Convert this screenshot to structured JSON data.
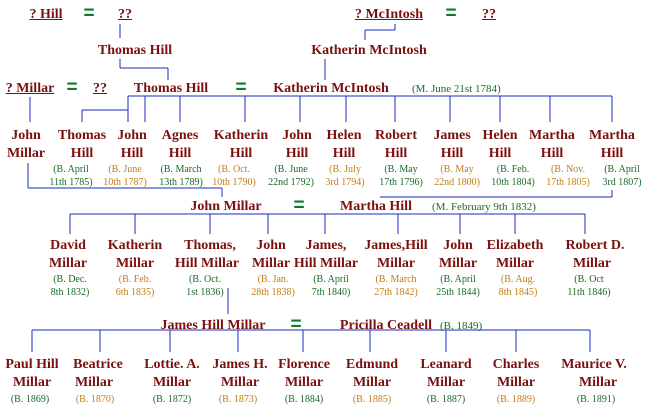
{
  "gen1": {
    "left_name": "? Hill",
    "left_spouse": "??",
    "right_name": "? McIntosh",
    "right_spouse": "??",
    "equals": "="
  },
  "gen2": {
    "thomas_hill": "Thomas Hill",
    "katherin_mcintosh": "Katherin McIntosh",
    "millar_name": "? Millar",
    "millar_spouse": "??",
    "couple_left": "Thomas Hill",
    "couple_right": "Katherin McIntosh",
    "marriage": "(M. June 21st 1784)",
    "equals": "="
  },
  "gen3": {
    "john_millar_line1": "John",
    "john_millar_line2": "Millar",
    "children": [
      {
        "line1": "Thomas",
        "line2": "Hill",
        "date1": "(B. April",
        "date2": "11th 1785)",
        "color": "#186b25"
      },
      {
        "line1": "John",
        "line2": "Hill",
        "date1": "(B. June",
        "date2": "10th 1787)",
        "color": "#c47c12"
      },
      {
        "line1": "Agnes",
        "line2": "Hill",
        "date1": "(B. March",
        "date2": "13th 1789)",
        "color": "#186b25"
      },
      {
        "line1": "Katherin",
        "line2": "Hill",
        "date1": "(B. Oct.",
        "date2": "10th 1790)",
        "color": "#c47c12"
      },
      {
        "line1": "John",
        "line2": "Hill",
        "date1": "(B. June",
        "date2": "22nd 1792)",
        "color": "#186b25"
      },
      {
        "line1": "Helen",
        "line2": "Hill",
        "date1": "(B. July",
        "date2": "3rd 1794)",
        "color": "#c47c12"
      },
      {
        "line1": "Robert",
        "line2": "Hill",
        "date1": "(B. May",
        "date2": "17th 1796)",
        "color": "#186b25"
      },
      {
        "line1": "James",
        "line2": "Hill",
        "date1": "(B. May",
        "date2": "22nd 1800)",
        "color": "#c47c12"
      },
      {
        "line1": "Helen",
        "line2": "Hill",
        "date1": "(B. Feb.",
        "date2": "10th 1804)",
        "color": "#186b25"
      },
      {
        "line1": "Martha",
        "line2": "Hill",
        "date1": "(B. Nov.",
        "date2": "17th 1805)",
        "color": "#c47c12"
      },
      {
        "line1": "Martha",
        "line2": "Hill",
        "date1": "(B. April",
        "date2": "3rd 1807)",
        "color": "#186b25"
      }
    ]
  },
  "gen3_couple": {
    "left": "John Millar",
    "right": "Martha Hill",
    "marriage": "(M. February 9th 1832)",
    "equals": "="
  },
  "gen4": {
    "children": [
      {
        "line1": "David",
        "line2": "Millar",
        "date1": "(B. Dec.",
        "date2": "8th 1832)",
        "color": "#186b25"
      },
      {
        "line1": "Katherin",
        "line2": "Millar",
        "date1": "(B. Feb.",
        "date2": "6th 1835)",
        "color": "#c47c12"
      },
      {
        "line1": "Thomas,",
        "line2": "Hill Millar",
        "date1": "(B. Oct.",
        "date2": "1st 1836)",
        "color": "#186b25"
      },
      {
        "line1": "John",
        "line2": "Millar",
        "date1": "(B. Jan.",
        "date2": "28th 1838)",
        "color": "#c47c12"
      },
      {
        "line1": "James,",
        "line2": "Hill Millar",
        "date1": "(B. April",
        "date2": "7th 1840)",
        "color": "#186b25"
      },
      {
        "line1": "James,Hill",
        "line2": "Millar",
        "date1": "(B. March",
        "date2": "27th 1842)",
        "color": "#c47c12"
      },
      {
        "line1": "John",
        "line2": "Millar",
        "date1": "(B. April",
        "date2": "25th 1844)",
        "color": "#186b25"
      },
      {
        "line1": "Elizabeth",
        "line2": "Millar",
        "date1": "(B. Aug.",
        "date2": "8th 1845)",
        "color": "#c47c12"
      },
      {
        "line1": "Robert  D.",
        "line2": "Millar",
        "date1": "(B. Oct",
        "date2": "11th 1846)",
        "color": "#186b25"
      }
    ]
  },
  "gen4_couple": {
    "left": "James Hill Millar",
    "right": "Pricilla Ceadell",
    "right_birth": "(B. 1849)",
    "equals": "="
  },
  "gen5": {
    "children": [
      {
        "line1": "Paul Hill",
        "line2": "Millar",
        "date": "(B. 1869)",
        "color": "#186b25"
      },
      {
        "line1": "Beatrice",
        "line2": "Millar",
        "date": "(B. 1870)",
        "color": "#c47c12"
      },
      {
        "line1": "Lottie. A.",
        "line2": "Millar",
        "date": "(B. 1872)",
        "color": "#186b25"
      },
      {
        "line1": "James H.",
        "line2": "Millar",
        "date": "(B. 1873)",
        "color": "#c47c12"
      },
      {
        "line1": "Florence",
        "line2": "Millar",
        "date": "(B. 1884)",
        "color": "#186b25"
      },
      {
        "line1": "Edmund",
        "line2": "Millar",
        "date": "(B. 1885)",
        "color": "#c47c12"
      },
      {
        "line1": "Leanard",
        "line2": "Millar",
        "date": "(B. 1887)",
        "color": "#186b25"
      },
      {
        "line1": "Charles",
        "line2": "Millar",
        "date": "(B. 1889)",
        "color": "#c47c12"
      },
      {
        "line1": "Maurice V.",
        "line2": "Millar",
        "date": "(B. 1891)",
        "color": "#186b25"
      }
    ]
  },
  "colors": {
    "line": "#1c2bc0",
    "name": "#7a1010",
    "equals": "#0f7a2a",
    "date_green": "#186b25",
    "date_orange": "#c47c12"
  }
}
